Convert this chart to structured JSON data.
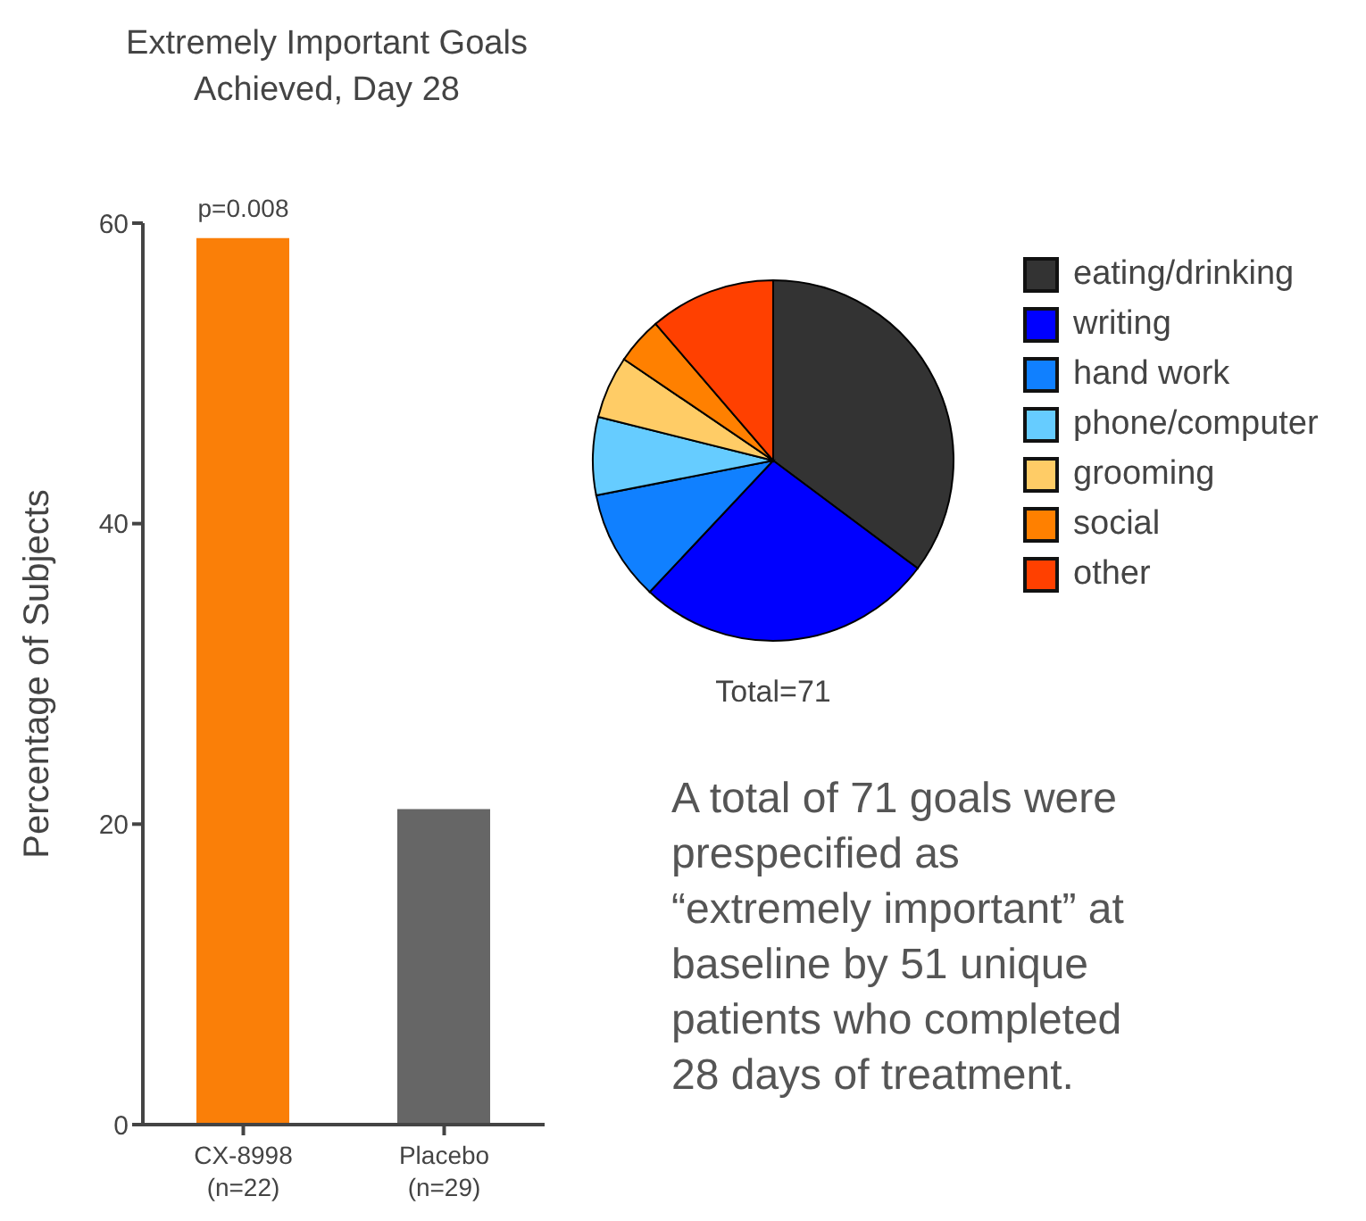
{
  "chart_data": [
    {
      "type": "bar",
      "title": "Extremely Important Goals\nAchieved, Day 28",
      "ylabel": "Percentage of Subjects",
      "categories": [
        "CX-8998\n(n=22)",
        "Placebo\n(n=29)"
      ],
      "values": [
        59,
        21
      ],
      "colors": [
        "#fa7f08",
        "#666666"
      ],
      "ylim": [
        0,
        60
      ],
      "yticks": [
        0,
        20,
        40,
        60
      ],
      "grid": false,
      "annotations": [
        {
          "text": "p=0.008",
          "x": "CX-8998\n(n=22)",
          "y": 59
        }
      ]
    },
    {
      "type": "pie",
      "categories": [
        "eating/drinking",
        "writing",
        "hand work",
        "phone/computer",
        "grooming",
        "social",
        "other"
      ],
      "values": [
        35.2,
        26.8,
        9.9,
        7.0,
        5.6,
        4.2,
        11.3
      ],
      "colors": [
        "#333333",
        "#0000ff",
        "#1080ff",
        "#66ccff",
        "#ffcc66",
        "#ff8000",
        "#ff4000"
      ],
      "legend": "right",
      "annotations": [
        "Total=71",
        "A total of 71 goals were prespecified as “extremely important” at baseline by 51 unique patients who completed 28 days of treatment."
      ]
    }
  ]
}
